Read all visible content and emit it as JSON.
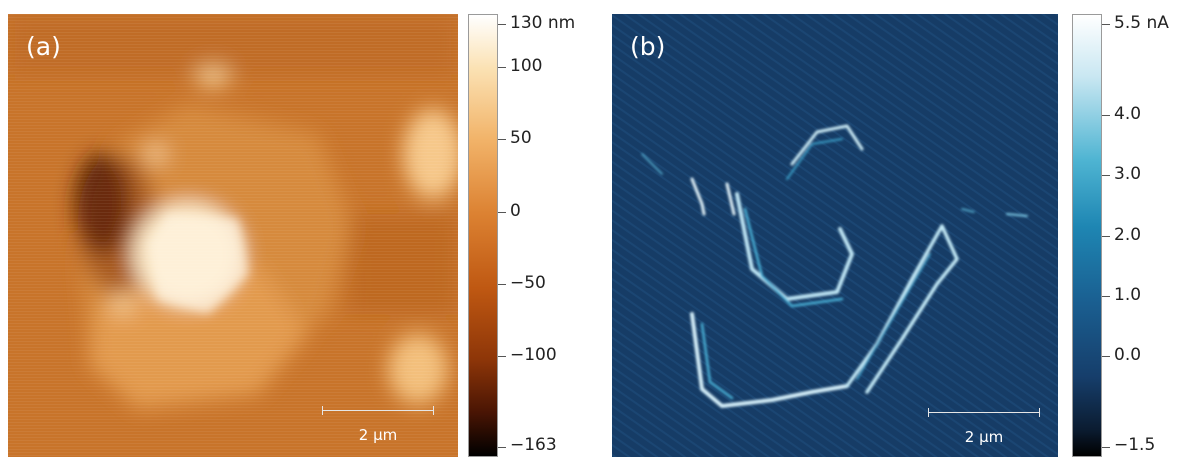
{
  "panels": [
    {
      "label": "(a)",
      "scale_bar": "2 μm",
      "colorbar": {
        "unit": "nm",
        "ticks": [
          "130 nm",
          "100",
          "50",
          "0",
          "−50",
          "−100",
          "−163"
        ],
        "tick_values": [
          130,
          100,
          50,
          0,
          -50,
          -100,
          -163
        ],
        "range": [
          -163,
          130
        ],
        "colormap": [
          "#000000",
          "#8e3608",
          "#dc8232",
          "#fbe2b4",
          "#ffffff"
        ]
      }
    },
    {
      "label": "(b)",
      "scale_bar": "2 μm",
      "colorbar": {
        "unit": "nA",
        "ticks": [
          "5.5 nA",
          "4.0",
          "3.0",
          "2.0",
          "1.0",
          "0.0",
          "−1.5"
        ],
        "tick_values": [
          5.5,
          4.0,
          3.0,
          2.0,
          1.0,
          0.0,
          -1.5
        ],
        "range": [
          -1.5,
          5.5
        ],
        "colormap": [
          "#000000",
          "#163e6b",
          "#1e86b3",
          "#c9e7f2",
          "#ffffff"
        ]
      }
    }
  ]
}
